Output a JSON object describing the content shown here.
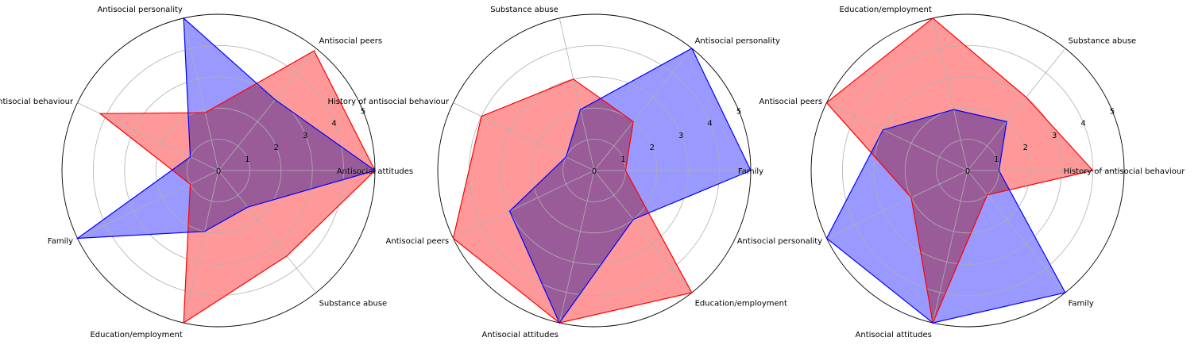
{
  "chart_data": [
    {
      "type": "radar",
      "title": "",
      "rmax": 5,
      "rticks": [
        "0",
        "1",
        "2",
        "3",
        "4",
        "5"
      ],
      "categories": [
        "Antisocial attitudes",
        "Antisocial peers",
        "Antisocial personality",
        "History of antisocial behaviour",
        "Family",
        "Education/employment",
        "Substance abuse"
      ],
      "series": [
        {
          "color": "#ff0000",
          "fill": "#ff9999",
          "values": [
            5.0,
            4.9,
            1.9,
            4.2,
            1.0,
            5.0,
            3.5
          ]
        },
        {
          "color": "#0000ff",
          "fill": "#9999ff",
          "values": [
            5.0,
            2.9,
            5.0,
            1.0,
            5.0,
            2.0,
            1.5
          ]
        }
      ]
    },
    {
      "type": "radar",
      "title": "",
      "rmax": 5,
      "rticks": [
        "0",
        "1",
        "2",
        "3",
        "4",
        "5"
      ],
      "categories": [
        "Family",
        "Antisocial personality",
        "Substance abuse",
        "History of antisocial behaviour",
        "Antisocial peers",
        "Antisocial attitudes",
        "Education/employment"
      ],
      "series": [
        {
          "color": "#ff0000",
          "fill": "#ff9999",
          "values": [
            1.0,
            2.0,
            3.0,
            4.0,
            5.0,
            5.0,
            5.0
          ]
        },
        {
          "color": "#0000ff",
          "fill": "#9999ff",
          "values": [
            5.0,
            5.0,
            2.0,
            1.0,
            3.0,
            5.0,
            2.0
          ]
        }
      ]
    },
    {
      "type": "radar",
      "title": "",
      "rmax": 5,
      "rticks": [
        "0",
        "1",
        "2",
        "3",
        "4",
        "5"
      ],
      "categories": [
        "History of antisocial behaviour",
        "Substance abuse",
        "Education/employment",
        "Antisocial peers",
        "Antisocial personality",
        "Antisocial attitudes",
        "Family"
      ],
      "series": [
        {
          "color": "#ff0000",
          "fill": "#ff9999",
          "values": [
            4.0,
            3.0,
            5.0,
            5.0,
            2.0,
            5.0,
            1.0
          ]
        },
        {
          "color": "#0000ff",
          "fill": "#9999ff",
          "values": [
            1.0,
            2.0,
            2.0,
            3.0,
            5.0,
            5.0,
            5.0
          ]
        }
      ]
    }
  ]
}
